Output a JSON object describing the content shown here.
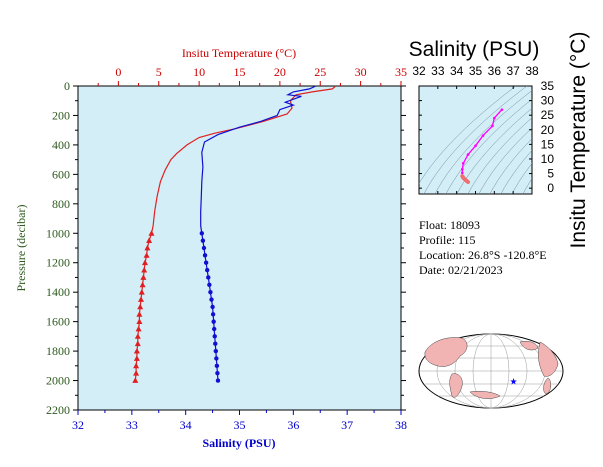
{
  "chart_data": [
    {
      "type": "line",
      "title": "",
      "top_xlabel": "Insitu Temperature (°C)",
      "bottom_xlabel": "Salinity (PSU)",
      "ylabel": "Pressure (decibar)",
      "ylim": [
        2200,
        0
      ],
      "temperature_lim": [
        -5,
        35
      ],
      "salinity_lim": [
        32,
        38
      ],
      "pressure_ticks": [
        0,
        200,
        400,
        600,
        800,
        1000,
        1200,
        1400,
        1600,
        1800,
        2000,
        2200
      ],
      "temperature_ticks": [
        0,
        5,
        10,
        15,
        20,
        25,
        30,
        35
      ],
      "salinity_ticks": [
        32,
        33,
        34,
        35,
        36,
        37,
        38
      ],
      "colors": {
        "temperature": "#e02020",
        "salinity": "#1010d0",
        "plot_bg": "#d4eef8",
        "axis_left": "#2d5a1e",
        "axis_top": "#cc0000",
        "axis_bottom": "#0000cc"
      },
      "series": [
        {
          "axis": "temperature",
          "points": [
            [
              26.9,
              0
            ],
            [
              26.5,
              20
            ],
            [
              24.0,
              40
            ],
            [
              22.0,
              60
            ],
            [
              21.3,
              100
            ],
            [
              21.5,
              150
            ],
            [
              20.9,
              190
            ],
            [
              18.0,
              240
            ],
            [
              14.5,
              290
            ],
            [
              12.0,
              320
            ],
            [
              10.0,
              350
            ],
            [
              8.5,
              400
            ],
            [
              7.2,
              460
            ],
            [
              6.5,
              500
            ],
            [
              5.8,
              570
            ],
            [
              5.2,
              650
            ],
            [
              4.8,
              750
            ],
            [
              4.5,
              850
            ],
            [
              4.3,
              950
            ],
            [
              4.1,
              1000
            ]
          ],
          "marker_points": [
            [
              4.1,
              1000
            ],
            [
              3.8,
              1050
            ],
            [
              3.6,
              1100
            ],
            [
              3.5,
              1150
            ],
            [
              3.3,
              1200
            ],
            [
              3.2,
              1250
            ],
            [
              3.1,
              1300
            ],
            [
              3.0,
              1350
            ],
            [
              2.9,
              1400
            ],
            [
              2.8,
              1450
            ],
            [
              2.7,
              1500
            ],
            [
              2.6,
              1550
            ],
            [
              2.6,
              1600
            ],
            [
              2.5,
              1650
            ],
            [
              2.4,
              1700
            ],
            [
              2.4,
              1750
            ],
            [
              2.3,
              1800
            ],
            [
              2.3,
              1850
            ],
            [
              2.2,
              1900
            ],
            [
              2.2,
              1950
            ],
            [
              2.1,
              2000
            ]
          ]
        },
        {
          "axis": "salinity",
          "points": [
            [
              36.42,
              0
            ],
            [
              36.3,
              20
            ],
            [
              36.0,
              40
            ],
            [
              35.9,
              60
            ],
            [
              36.15,
              70
            ],
            [
              35.85,
              110
            ],
            [
              36.0,
              130
            ],
            [
              35.75,
              160
            ],
            [
              35.7,
              200
            ],
            [
              35.4,
              240
            ],
            [
              35.0,
              280
            ],
            [
              34.6,
              330
            ],
            [
              34.35,
              380
            ],
            [
              34.3,
              450
            ],
            [
              34.32,
              550
            ],
            [
              34.3,
              650
            ],
            [
              34.29,
              750
            ],
            [
              34.28,
              850
            ],
            [
              34.28,
              950
            ],
            [
              34.3,
              1000
            ]
          ],
          "marker_points": [
            [
              34.3,
              1000
            ],
            [
              34.32,
              1050
            ],
            [
              34.34,
              1100
            ],
            [
              34.36,
              1150
            ],
            [
              34.38,
              1200
            ],
            [
              34.4,
              1250
            ],
            [
              34.42,
              1300
            ],
            [
              34.44,
              1350
            ],
            [
              34.46,
              1400
            ],
            [
              34.48,
              1450
            ],
            [
              34.5,
              1500
            ],
            [
              34.51,
              1550
            ],
            [
              34.52,
              1600
            ],
            [
              34.53,
              1650
            ],
            [
              34.54,
              1700
            ],
            [
              34.55,
              1750
            ],
            [
              34.56,
              1800
            ],
            [
              34.57,
              1850
            ],
            [
              34.58,
              1900
            ],
            [
              34.59,
              1950
            ],
            [
              34.6,
              2000
            ]
          ]
        }
      ]
    },
    {
      "type": "scatter",
      "title": "Salinity (PSU)",
      "ylabel": "Insitu Temperature (°C)",
      "xlim": [
        32,
        38
      ],
      "ylim": [
        -2,
        35
      ],
      "xticks": [
        32,
        33,
        34,
        35,
        36,
        37,
        38
      ],
      "yticks": [
        0,
        5,
        10,
        15,
        20,
        25,
        30,
        35
      ],
      "series": [
        {
          "color": "#ff00ff",
          "points": [
            [
              36.4,
              26.9
            ],
            [
              36.0,
              24.0
            ],
            [
              35.9,
              21.3
            ],
            [
              35.4,
              18.0
            ],
            [
              35.0,
              14.5
            ],
            [
              34.6,
              11.5
            ],
            [
              34.35,
              8.5
            ],
            [
              34.3,
              6.5
            ],
            [
              34.3,
              5.2
            ]
          ]
        },
        {
          "color": "#f07070",
          "points": [
            [
              34.3,
              4.1
            ],
            [
              34.36,
              3.5
            ],
            [
              34.44,
              3.0
            ],
            [
              34.5,
              2.7
            ],
            [
              34.55,
              2.4
            ],
            [
              34.6,
              2.1
            ]
          ]
        }
      ]
    }
  ],
  "float_info": {
    "float": "Float:  18093",
    "profile": "Profile:  115",
    "location": "Location:  26.8°S  -120.8°E",
    "date": "Date:  02/21/2023"
  },
  "map": {
    "marker_symbol": "★",
    "marker_color": "#0000ff",
    "marker_lon": -120.8,
    "marker_lat": -26.8
  }
}
